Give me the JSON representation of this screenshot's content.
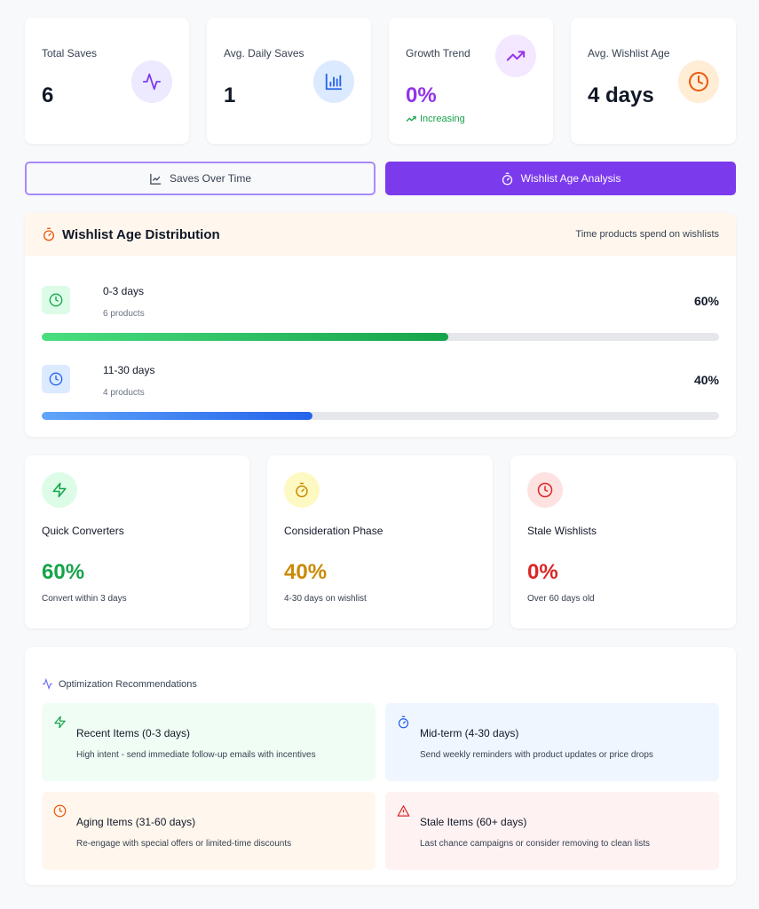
{
  "stats": [
    {
      "label": "Total Saves",
      "value": "6",
      "icon": "activity-icon",
      "bg": "#ede9fe",
      "color": "#7c3aed"
    },
    {
      "label": "Avg. Daily Saves",
      "value": "1",
      "icon": "bar-chart-icon",
      "bg": "#dbeafe",
      "color": "#2563eb"
    },
    {
      "label": "Growth Trend",
      "value": "0%",
      "icon": "trending-up-icon",
      "bg": "#f3e8ff",
      "color": "#9333ea",
      "trend": "Increasing"
    },
    {
      "label": "Avg. Wishlist Age",
      "value": "4 days",
      "icon": "clock-icon",
      "bg": "#ffedd5",
      "color": "#ea580c"
    }
  ],
  "tabs": [
    {
      "label": "Saves Over Time",
      "active": false
    },
    {
      "label": "Wishlist Age Analysis",
      "active": true
    }
  ],
  "distribution": {
    "title": "Wishlist Age Distribution",
    "subtitle": "Time products spend on wishlists",
    "rows": [
      {
        "label": "0-3 days",
        "count": "6 products",
        "percent_label": "60%",
        "percent": 60
      },
      {
        "label": "11-30 days",
        "count": "4 products",
        "percent_label": "40%",
        "percent": 40
      }
    ]
  },
  "segments": [
    {
      "title": "Quick Converters",
      "value": "60%",
      "sub": "Convert within 3 days",
      "color": "#16a34a",
      "bg": "#dcfce7"
    },
    {
      "title": "Consideration Phase",
      "value": "40%",
      "sub": "4-30 days on wishlist",
      "color": "#ca8a04",
      "bg": "#fef9c3"
    },
    {
      "title": "Stale Wishlists",
      "value": "0%",
      "sub": "Over 60 days old",
      "color": "#dc2626",
      "bg": "#fee2e2"
    }
  ],
  "recommendations": {
    "title": "Optimization Recommendations",
    "items": [
      {
        "title": "Recent Items (0-3 days)",
        "desc": "High intent - send immediate follow-up emails with incentives",
        "bg": "#f0fdf4",
        "icon": "zap-icon"
      },
      {
        "title": "Mid-term (4-30 days)",
        "desc": "Send weekly reminders with product updates or price drops",
        "bg": "#eff6ff",
        "icon": "timer-icon"
      },
      {
        "title": "Aging Items (31-60 days)",
        "desc": "Re-engage with special offers or limited-time discounts",
        "bg": "#fff7ed",
        "icon": "clock-icon"
      },
      {
        "title": "Stale Items (60+ days)",
        "desc": "Last chance campaigns or consider removing to clean lists",
        "bg": "#fef2f2",
        "icon": "alert-triangle-icon"
      }
    ]
  }
}
